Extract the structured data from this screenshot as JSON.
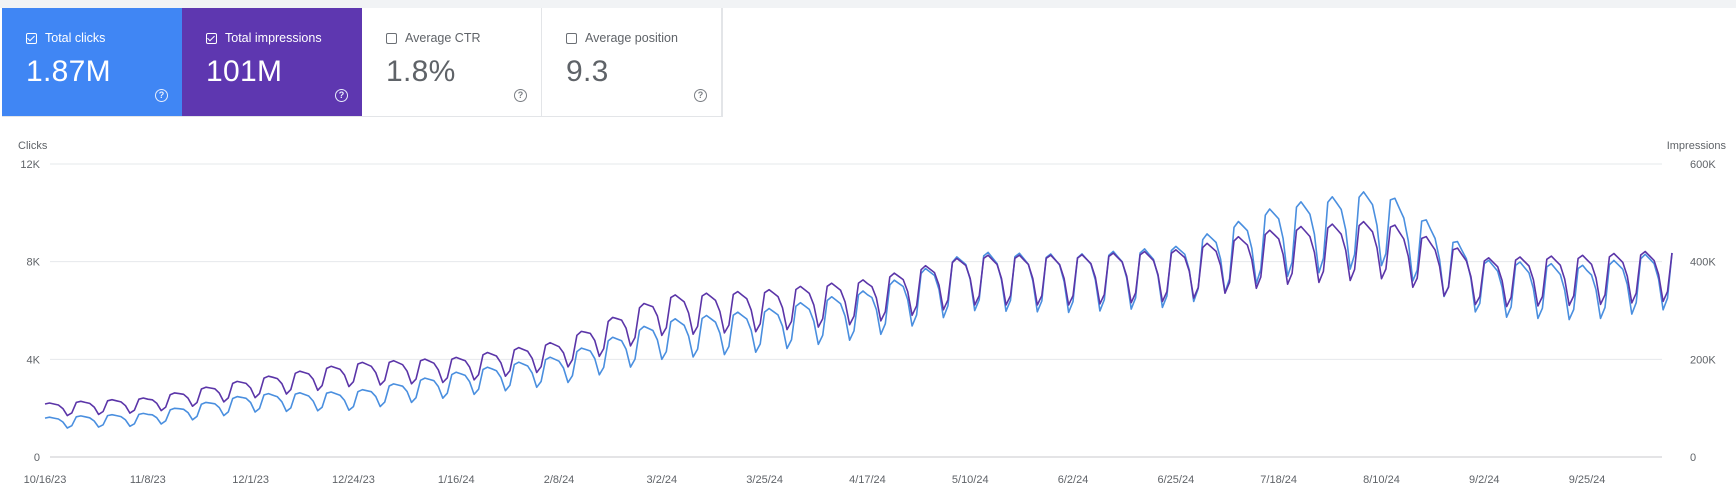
{
  "cards": [
    {
      "label": "Total clicks",
      "value": "1.87M",
      "checked": true,
      "color": "#4086f4"
    },
    {
      "label": "Total impressions",
      "value": "101M",
      "checked": true,
      "color": "#5e37b0"
    },
    {
      "label": "Average CTR",
      "value": "1.8%",
      "checked": false,
      "color": "#ffffff"
    },
    {
      "label": "Average position",
      "value": "9.3",
      "checked": false,
      "color": "#ffffff"
    }
  ],
  "help_glyph": "?",
  "chart_data": {
    "type": "line",
    "title": "",
    "left_axis": {
      "label": "Clicks",
      "ticks": [
        "0",
        "4K",
        "8K",
        "12K"
      ],
      "tick_values": [
        0,
        4000,
        8000,
        12000
      ],
      "ylim": [
        0,
        12000
      ]
    },
    "right_axis": {
      "label": "Impressions",
      "ticks": [
        "0",
        "200K",
        "400K",
        "600K"
      ],
      "tick_values": [
        0,
        200000,
        400000,
        600000
      ],
      "ylim": [
        0,
        600000
      ]
    },
    "x_start": "2023-10-16",
    "x_end": "2024-10-14",
    "x_ticks": [
      "10/16/23",
      "11/8/23",
      "12/1/23",
      "12/24/23",
      "1/16/24",
      "2/8/24",
      "3/2/24",
      "3/25/24",
      "4/17/24",
      "5/10/24",
      "6/2/24",
      "6/25/24",
      "7/18/24",
      "8/10/24",
      "9/2/24",
      "9/25/24"
    ],
    "grid": true,
    "legend": "none",
    "series": [
      {
        "name": "Clicks",
        "axis": "left",
        "color": "#4a8fdf",
        "anchors": [
          {
            "x": "2023-10-16",
            "y": 1450
          },
          {
            "x": "2023-11-08",
            "y": 1600
          },
          {
            "x": "2023-12-01",
            "y": 2300
          },
          {
            "x": "2023-12-24",
            "y": 2400
          },
          {
            "x": "2024-01-16",
            "y": 3100
          },
          {
            "x": "2024-02-08",
            "y": 3700
          },
          {
            "x": "2024-03-02",
            "y": 5000
          },
          {
            "x": "2024-03-25",
            "y": 5400
          },
          {
            "x": "2024-04-17",
            "y": 6100
          },
          {
            "x": "2024-05-10",
            "y": 7500
          },
          {
            "x": "2024-06-02",
            "y": 7400
          },
          {
            "x": "2024-06-25",
            "y": 7700
          },
          {
            "x": "2024-07-18",
            "y": 9200
          },
          {
            "x": "2024-08-10",
            "y": 9800
          },
          {
            "x": "2024-09-02",
            "y": 7200
          },
          {
            "x": "2024-09-25",
            "y": 7000
          },
          {
            "x": "2024-10-14",
            "y": 7600
          }
        ]
      },
      {
        "name": "Impressions",
        "axis": "right",
        "color": "#5b35a8",
        "anchors": [
          {
            "x": "2023-10-16",
            "y": 100000
          },
          {
            "x": "2023-11-08",
            "y": 110000
          },
          {
            "x": "2023-12-01",
            "y": 145000
          },
          {
            "x": "2023-12-24",
            "y": 175000
          },
          {
            "x": "2024-01-16",
            "y": 185000
          },
          {
            "x": "2024-02-08",
            "y": 215000
          },
          {
            "x": "2024-03-02",
            "y": 300000
          },
          {
            "x": "2024-03-25",
            "y": 310000
          },
          {
            "x": "2024-04-17",
            "y": 330000
          },
          {
            "x": "2024-05-10",
            "y": 375000
          },
          {
            "x": "2024-06-02",
            "y": 375000
          },
          {
            "x": "2024-06-25",
            "y": 385000
          },
          {
            "x": "2024-07-18",
            "y": 425000
          },
          {
            "x": "2024-08-10",
            "y": 440000
          },
          {
            "x": "2024-09-02",
            "y": 370000
          },
          {
            "x": "2024-09-25",
            "y": 375000
          },
          {
            "x": "2024-10-14",
            "y": 385000
          }
        ]
      }
    ]
  }
}
